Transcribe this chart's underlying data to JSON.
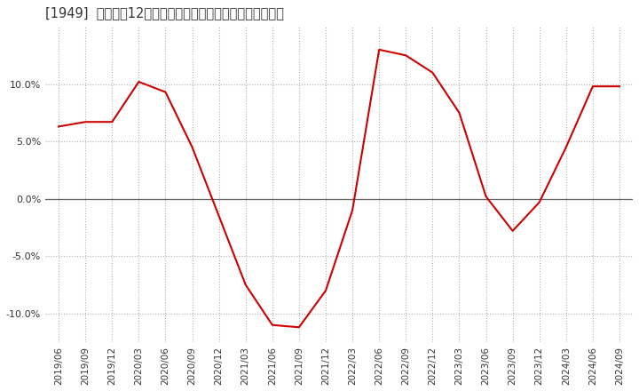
{
  "title": "[1949]  売上高の12か月移動合計の対前年同期増減率の推移",
  "line_color": "#cc0000",
  "background_color": "#ffffff",
  "plot_bg_color": "#ffffff",
  "grid_color": "#b0b0b0",
  "dates": [
    "2019/06",
    "2019/09",
    "2019/12",
    "2020/03",
    "2020/06",
    "2020/09",
    "2020/12",
    "2021/03",
    "2021/06",
    "2021/09",
    "2021/12",
    "2022/03",
    "2022/06",
    "2022/09",
    "2022/12",
    "2023/03",
    "2023/06",
    "2023/09",
    "2023/12",
    "2024/03",
    "2024/06",
    "2024/09"
  ],
  "values": [
    6.3,
    6.7,
    6.7,
    10.2,
    9.3,
    4.5,
    -1.5,
    -7.5,
    -11.0,
    -11.2,
    -8.0,
    -1.0,
    13.0,
    12.5,
    11.0,
    7.5,
    0.2,
    -2.8,
    -0.3,
    4.5,
    9.8,
    9.8
  ],
  "ylim": [
    -12.5,
    15.0
  ],
  "yticks": [
    -10.0,
    -5.0,
    0.0,
    5.0,
    10.0
  ],
  "ytick_labels": [
    "-10.0%",
    "-5.0%",
    "0.0%",
    "5.0%",
    "10.0%"
  ],
  "title_fontsize": 10.5,
  "tick_fontsize": 7.5
}
